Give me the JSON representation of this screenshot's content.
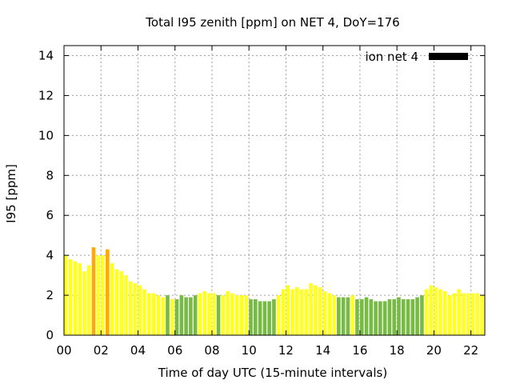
{
  "chart_data": {
    "type": "bar",
    "title": "Total I95 zenith [ppm] on NET 4, DoY=176",
    "xlabel": "Time of day UTC (15-minute intervals)",
    "ylabel": "I95 [ppm]",
    "xlim": [
      0,
      22.75
    ],
    "ylim": [
      0,
      14.5
    ],
    "xtick_labels": [
      "00",
      "02",
      "04",
      "06",
      "08",
      "10",
      "12",
      "14",
      "16",
      "18",
      "20",
      "22"
    ],
    "xtick_values": [
      0,
      2,
      4,
      6,
      8,
      10,
      12,
      14,
      16,
      18,
      20,
      22
    ],
    "ytick_labels": [
      "0",
      "2",
      "4",
      "6",
      "8",
      "10",
      "12",
      "14"
    ],
    "ytick_values": [
      0,
      2,
      4,
      6,
      8,
      10,
      12,
      14
    ],
    "grid": true,
    "legend": {
      "placement": "top-right",
      "entries": [
        {
          "label": "ion net 4",
          "color": "#000000"
        }
      ]
    },
    "bar_width_hours": 0.2,
    "colors": {
      "low": "#77bb44",
      "mid": "#ffff22",
      "high": "#ffaa00"
    },
    "x": [
      0.0,
      0.25,
      0.5,
      0.75,
      1.0,
      1.25,
      1.5,
      1.75,
      2.0,
      2.25,
      2.5,
      2.75,
      3.0,
      3.25,
      3.5,
      3.75,
      4.0,
      4.25,
      4.5,
      4.75,
      5.0,
      5.25,
      5.5,
      5.75,
      6.0,
      6.25,
      6.5,
      6.75,
      7.0,
      7.25,
      7.5,
      7.75,
      8.0,
      8.25,
      8.5,
      8.75,
      9.0,
      9.25,
      9.5,
      9.75,
      10.0,
      10.25,
      10.5,
      10.75,
      11.0,
      11.25,
      11.5,
      11.75,
      12.0,
      12.25,
      12.5,
      12.75,
      13.0,
      13.25,
      13.5,
      13.75,
      14.0,
      14.25,
      14.5,
      14.75,
      15.0,
      15.25,
      15.5,
      15.75,
      16.0,
      16.25,
      16.5,
      16.75,
      17.0,
      17.25,
      17.5,
      17.75,
      18.0,
      18.25,
      18.5,
      18.75,
      19.0,
      19.25,
      19.5,
      19.75,
      20.0,
      20.25,
      20.5,
      20.75,
      21.0,
      21.25,
      21.5,
      21.75,
      22.0,
      22.25,
      22.5
    ],
    "values": [
      4.0,
      3.8,
      3.7,
      3.6,
      3.2,
      3.5,
      4.4,
      4.0,
      4.0,
      4.3,
      3.6,
      3.3,
      3.2,
      3.0,
      2.7,
      2.6,
      2.5,
      2.3,
      2.1,
      2.1,
      2.0,
      1.9,
      2.0,
      1.8,
      1.8,
      2.0,
      1.9,
      1.9,
      2.0,
      2.1,
      2.2,
      2.1,
      2.1,
      2.0,
      2.0,
      2.2,
      2.1,
      2.0,
      2.0,
      2.0,
      1.8,
      1.8,
      1.7,
      1.7,
      1.7,
      1.8,
      2.0,
      2.3,
      2.5,
      2.3,
      2.4,
      2.3,
      2.3,
      2.6,
      2.5,
      2.4,
      2.2,
      2.1,
      2.0,
      1.9,
      1.9,
      1.9,
      2.0,
      1.8,
      1.8,
      1.9,
      1.8,
      1.7,
      1.7,
      1.7,
      1.8,
      1.8,
      1.9,
      1.8,
      1.8,
      1.8,
      1.9,
      2.0,
      2.3,
      2.5,
      2.4,
      2.3,
      2.2,
      2.0,
      2.1,
      2.3,
      2.1,
      2.1,
      2.1,
      2.1,
      2.0
    ],
    "bar_levels": [
      "mid",
      "mid",
      "mid",
      "mid",
      "mid",
      "mid",
      "high",
      "mid",
      "mid",
      "high",
      "mid",
      "mid",
      "mid",
      "mid",
      "mid",
      "mid",
      "mid",
      "mid",
      "mid",
      "mid",
      "mid",
      "mid",
      "low",
      "mid",
      "low",
      "low",
      "low",
      "low",
      "low",
      "mid",
      "mid",
      "mid",
      "mid",
      "low",
      "mid",
      "mid",
      "mid",
      "mid",
      "mid",
      "mid",
      "low",
      "low",
      "low",
      "low",
      "low",
      "low",
      "mid",
      "mid",
      "mid",
      "mid",
      "mid",
      "mid",
      "mid",
      "mid",
      "mid",
      "mid",
      "mid",
      "mid",
      "mid",
      "low",
      "low",
      "low",
      "mid",
      "low",
      "low",
      "low",
      "low",
      "low",
      "low",
      "low",
      "low",
      "low",
      "low",
      "low",
      "low",
      "low",
      "low",
      "low",
      "mid",
      "mid",
      "mid",
      "mid",
      "mid",
      "mid",
      "mid",
      "mid",
      "mid",
      "mid",
      "mid",
      "mid",
      "mid"
    ]
  }
}
